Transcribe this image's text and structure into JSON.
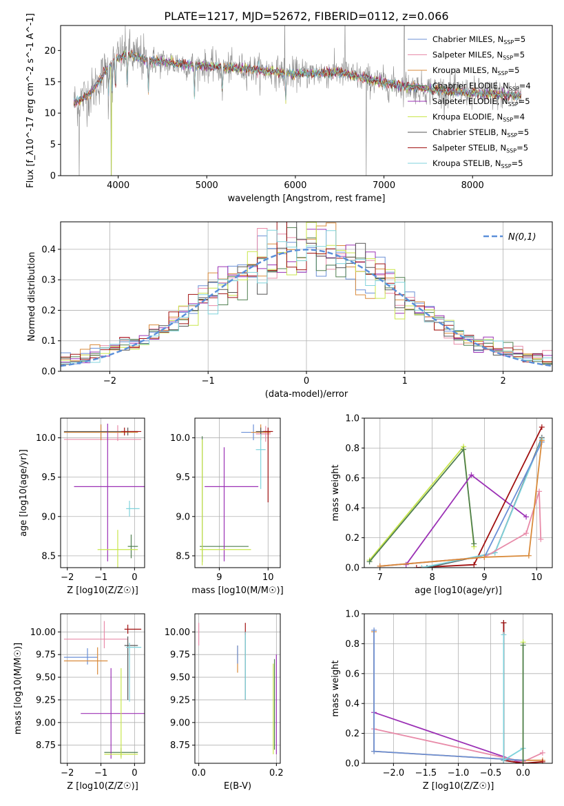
{
  "figure": {
    "title": "PLATE=1217, MJD=52672, FIBERID=0112, z=0.066"
  },
  "colors": {
    "Chabrier MILES": "#6a8fd6",
    "Salpeter MILES": "#e88aa8",
    "Kroupa MILES": "#d98a3a",
    "Chabrier ELODIE": "#4f7f4f",
    "Salpeter ELODIE": "#9b30b5",
    "Kroupa ELODIE": "#c8e64a",
    "Chabrier STELIB": "#555555",
    "Salpeter STELIB": "#a01010",
    "Kroupa STELIB": "#7fd3dc",
    "data": "#888888",
    "normal": "#5b8fd9"
  },
  "chart_data": [
    {
      "id": "spectrum",
      "type": "line",
      "title": "",
      "xlabel": "wavelength [Angstrom, rest frame]",
      "ylabel": "Flux [f_λ10^-17 erg cm^-2 s^-1 A^-1]",
      "xlim": [
        3350,
        8900
      ],
      "ylim": [
        0,
        24
      ],
      "xticks": [
        4000,
        5000,
        6000,
        7000,
        8000
      ],
      "yticks": [
        0,
        5,
        10,
        15,
        20
      ],
      "legend_loc": "upper right",
      "legend": [
        {
          "name": "Chabrier MILES",
          "nssp": "5"
        },
        {
          "name": "Salpeter MILES",
          "nssp": "5"
        },
        {
          "name": "Kroupa MILES",
          "nssp": "5"
        },
        {
          "name": "Chabrier ELODIE",
          "nssp": "4"
        },
        {
          "name": "Salpeter ELODIE",
          "nssp": "5"
        },
        {
          "name": "Kroupa ELODIE",
          "nssp": "4"
        },
        {
          "name": "Chabrier STELIB",
          "nssp": "5"
        },
        {
          "name": "Salpeter STELIB",
          "nssp": "5"
        },
        {
          "name": "Kroupa STELIB",
          "nssp": "5"
        }
      ],
      "continuum": {
        "x": [
          3500,
          3700,
          3900,
          4100,
          4300,
          4600,
          5000,
          5500,
          6000,
          6500,
          7000,
          7500,
          8000,
          8500
        ],
        "y": [
          13.5,
          14.5,
          18,
          19.5,
          18.5,
          18,
          17.5,
          17,
          16.3,
          16.5,
          14.8,
          13.8,
          13.2,
          12.8
        ]
      }
    },
    {
      "id": "residuals",
      "type": "histogram",
      "xlabel": "(data-model)/error",
      "ylabel": "Normed distribution",
      "xlim": [
        -2.5,
        2.5
      ],
      "ylim": [
        0,
        0.49
      ],
      "xticks": [
        -2,
        -1,
        0,
        1,
        2
      ],
      "yticks": [
        0.0,
        0.1,
        0.2,
        0.3,
        0.4
      ],
      "legend_loc": "upper right",
      "reference_label": "N(0,1)",
      "bins": 50
    },
    {
      "id": "age_vs_Z",
      "type": "errorbar",
      "xlabel": "Z [log10(Z/Z☉)]",
      "ylabel": "age [log10(age/yr)]",
      "xlim": [
        -2.2,
        0.3
      ],
      "ylim": [
        8.35,
        10.25
      ],
      "xticks": [
        -2,
        -1,
        0
      ],
      "yticks": [
        8.5,
        9.0,
        9.5,
        10.0
      ],
      "points": [
        {
          "s": "Chabrier MILES",
          "x": -1.0,
          "xe": [
            1.1,
            1.1
          ],
          "y": 10.07,
          "ye": [
            0.1,
            0.1
          ]
        },
        {
          "s": "Salpeter MILES",
          "x": -0.5,
          "xe": [
            1.6,
            0.7
          ],
          "y": 9.98,
          "ye": [
            0.02,
            0.18
          ]
        },
        {
          "s": "Kroupa MILES",
          "x": -1.0,
          "xe": [
            1.1,
            1.1
          ],
          "y": 10.07,
          "ye": [
            0.1,
            0.1
          ]
        },
        {
          "s": "Chabrier ELODIE",
          "x": -0.1,
          "xe": [
            0.1,
            0.2
          ],
          "y": 8.62,
          "ye": [
            0.15,
            0.15
          ]
        },
        {
          "s": "Salpeter ELODIE",
          "x": -0.8,
          "xe": [
            1.0,
            1.1
          ],
          "y": 9.38,
          "ye": [
            0.95,
            0.8
          ]
        },
        {
          "s": "Kroupa ELODIE",
          "x": -0.5,
          "xe": [
            0.6,
            0.6
          ],
          "y": 8.58,
          "ye": [
            0.25,
            0.25
          ]
        },
        {
          "s": "Chabrier STELIB",
          "x": -0.2,
          "xe": [
            1.9,
            0.3
          ],
          "y": 10.08,
          "ye": [
            0.05,
            0.05
          ]
        },
        {
          "s": "Salpeter STELIB",
          "x": -0.3,
          "xe": [
            0.1,
            0.5
          ],
          "y": 10.08,
          "ye": [
            0.05,
            0.05
          ]
        },
        {
          "s": "Kroupa STELIB",
          "x": -0.15,
          "xe": [
            0.1,
            0.3
          ],
          "y": 9.1,
          "ye": [
            0.1,
            0.1
          ]
        }
      ]
    },
    {
      "id": "age_vs_mass",
      "type": "errorbar",
      "xlabel": "mass [log10(M/M☉)]",
      "ylabel": "",
      "xlim": [
        8.5,
        10.25
      ],
      "ylim": [
        8.35,
        10.25
      ],
      "xticks": [
        9,
        10
      ],
      "yticks": [
        8.5,
        9.0,
        9.5,
        10.0
      ],
      "points": [
        {
          "s": "Chabrier MILES",
          "x": 9.7,
          "xe": [
            0.25,
            0.25
          ],
          "y": 10.07,
          "ye": [
            0.1,
            0.1
          ]
        },
        {
          "s": "Salpeter MILES",
          "x": 9.95,
          "xe": [
            0.2,
            0.1
          ],
          "y": 10.05,
          "ye": [
            0.1,
            0.1
          ]
        },
        {
          "s": "Kroupa MILES",
          "x": 9.85,
          "xe": [
            0.2,
            0.2
          ],
          "y": 10.07,
          "ye": [
            0.1,
            0.1
          ]
        },
        {
          "s": "Chabrier ELODIE",
          "x": 8.65,
          "xe": [
            0.05,
            0.95
          ],
          "y": 8.62,
          "ye": [
            0.2,
            1.4
          ]
        },
        {
          "s": "Salpeter ELODIE",
          "x": 9.1,
          "xe": [
            0.4,
            0.7
          ],
          "y": 9.38,
          "ye": [
            0.95,
            0.5
          ]
        },
        {
          "s": "Kroupa ELODIE",
          "x": 8.65,
          "xe": [
            0.05,
            1.0
          ],
          "y": 8.58,
          "ye": [
            0.2,
            1.4
          ]
        },
        {
          "s": "Chabrier STELIB",
          "x": 9.85,
          "xe": [
            0.1,
            0.2
          ],
          "y": 10.08,
          "ye": [
            0.05,
            0.05
          ]
        },
        {
          "s": "Salpeter STELIB",
          "x": 10.0,
          "xe": [
            0.1,
            0.1
          ],
          "y": 10.08,
          "ye": [
            0.9,
            0.05
          ]
        },
        {
          "s": "Kroupa STELIB",
          "x": 9.85,
          "xe": [
            0.1,
            0.1
          ],
          "y": 9.85,
          "ye": [
            0.5,
            0.2
          ]
        }
      ]
    },
    {
      "id": "weight_vs_age",
      "type": "line",
      "xlabel": "age [log10(age/yr)]",
      "ylabel": "mass weight",
      "xlim": [
        6.7,
        10.3
      ],
      "ylim": [
        0,
        1.0
      ],
      "xticks": [
        7,
        8,
        9,
        10
      ],
      "yticks": [
        0.0,
        0.2,
        0.4,
        0.6,
        0.8,
        1.0
      ],
      "series": [
        {
          "s": "Kroupa ELODIE",
          "x": [
            6.8,
            8.6,
            8.8
          ],
          "y": [
            0.05,
            0.81,
            0.14
          ]
        },
        {
          "s": "Chabrier ELODIE",
          "x": [
            6.8,
            8.6,
            8.8
          ],
          "y": [
            0.04,
            0.79,
            0.16
          ]
        },
        {
          "s": "Salpeter ELODIE",
          "x": [
            7.5,
            8.75,
            9.8
          ],
          "y": [
            0.02,
            0.62,
            0.34
          ]
        },
        {
          "s": "Salpeter STELIB",
          "x": [
            7.7,
            8.8,
            10.1
          ],
          "y": [
            0.0,
            0.02,
            0.94
          ]
        },
        {
          "s": "Chabrier STELIB",
          "x": [
            7.9,
            9.2,
            10.1
          ],
          "y": [
            0.0,
            0.1,
            0.87
          ]
        },
        {
          "s": "Kroupa STELIB",
          "x": [
            7.8,
            9.2,
            10.1
          ],
          "y": [
            0.0,
            0.1,
            0.86
          ]
        },
        {
          "s": "Chabrier MILES",
          "x": [
            7.0,
            9.0,
            10.1
          ],
          "y": [
            0.01,
            0.07,
            0.84
          ]
        },
        {
          "s": "Salpeter MILES",
          "x": [
            7.0,
            9.0,
            9.8,
            10.05,
            10.08
          ],
          "y": [
            0.01,
            0.07,
            0.23,
            0.51,
            0.19
          ]
        },
        {
          "s": "Kroupa MILES",
          "x": [
            7.0,
            9.0,
            9.85,
            10.1
          ],
          "y": [
            0.01,
            0.07,
            0.08,
            0.85
          ]
        }
      ]
    },
    {
      "id": "mass_vs_Z",
      "type": "errorbar",
      "xlabel": "Z [log10(Z/Z☉)]",
      "ylabel": "mass [log10(M/M☉)]",
      "xlim": [
        -2.2,
        0.3
      ],
      "ylim": [
        8.55,
        10.2
      ],
      "xticks": [
        -2,
        -1,
        0
      ],
      "yticks": [
        8.75,
        9.0,
        9.25,
        9.5,
        9.75,
        10.0
      ],
      "points": [
        {
          "s": "Chabrier MILES",
          "x": -1.4,
          "xe": [
            0.7,
            0.3
          ],
          "y": 9.72,
          "ye": [
            0.08,
            0.1
          ]
        },
        {
          "s": "Salpeter MILES",
          "x": -0.9,
          "xe": [
            1.2,
            0.7
          ],
          "y": 9.92,
          "ye": [
            0.1,
            0.2
          ]
        },
        {
          "s": "Kroupa MILES",
          "x": -1.1,
          "xe": [
            1.0,
            0.3
          ],
          "y": 9.68,
          "ye": [
            0.15,
            0.15
          ]
        },
        {
          "s": "Chabrier ELODIE",
          "x": -0.4,
          "xe": [
            0.5,
            0.5
          ],
          "y": 8.67,
          "ye": [
            0.05,
            0.05
          ]
        },
        {
          "s": "Salpeter ELODIE",
          "x": -0.7,
          "xe": [
            0.9,
            1.0
          ],
          "y": 9.1,
          "ye": [
            0.5,
            0.5
          ]
        },
        {
          "s": "Kroupa ELODIE",
          "x": -0.4,
          "xe": [
            0.5,
            0.5
          ],
          "y": 8.65,
          "ye": [
            0.05,
            0.95
          ]
        },
        {
          "s": "Chabrier STELIB",
          "x": -0.2,
          "xe": [
            0.1,
            0.3
          ],
          "y": 9.85,
          "ye": [
            0.6,
            0.1
          ]
        },
        {
          "s": "Salpeter STELIB",
          "x": -0.2,
          "xe": [
            0.1,
            0.4
          ],
          "y": 10.03,
          "ye": [
            0.05,
            0.05
          ]
        },
        {
          "s": "Kroupa STELIB",
          "x": -0.15,
          "xe": [
            0.1,
            0.35
          ],
          "y": 9.83,
          "ye": [
            0.6,
            0.05
          ]
        }
      ]
    },
    {
      "id": "mass_vs_ebv",
      "type": "errorbar",
      "xlabel": "E(B-V)",
      "ylabel": "",
      "xlim": [
        -0.01,
        0.21
      ],
      "ylim": [
        8.55,
        10.2
      ],
      "xticks": [
        0.0,
        0.2
      ],
      "yticks": [
        8.75,
        9.0,
        9.25,
        9.5,
        9.75,
        10.0
      ],
      "points": [
        {
          "s": "Salpeter MILES",
          "x": 0.0,
          "xe": [
            0,
            0
          ],
          "y": 9.95,
          "ye": [
            0.1,
            0.15
          ]
        },
        {
          "s": "Kroupa MILES",
          "x": 0.1,
          "xe": [
            0,
            0
          ],
          "y": 9.7,
          "ye": [
            0.15,
            0.15
          ]
        },
        {
          "s": "Chabrier MILES",
          "x": 0.1,
          "xe": [
            0,
            0
          ],
          "y": 9.75,
          "ye": [
            0.1,
            0.1
          ]
        },
        {
          "s": "Chabrier STELIB",
          "x": 0.12,
          "xe": [
            0,
            0
          ],
          "y": 9.7,
          "ye": [
            0.45,
            0.3
          ]
        },
        {
          "s": "Salpeter STELIB",
          "x": 0.12,
          "xe": [
            0,
            0
          ],
          "y": 10.02,
          "ye": [
            0.05,
            0.08
          ]
        },
        {
          "s": "Kroupa STELIB",
          "x": 0.12,
          "xe": [
            0,
            0
          ],
          "y": 9.8,
          "ye": [
            0.55,
            0.2
          ]
        },
        {
          "s": "Chabrier ELODIE",
          "x": 0.195,
          "xe": [
            0,
            0
          ],
          "y": 9.2,
          "ye": [
            0.5,
            0.5
          ]
        },
        {
          "s": "Salpeter ELODIE",
          "x": 0.2,
          "xe": [
            0,
            0
          ],
          "y": 9.2,
          "ye": [
            0.55,
            0.55
          ]
        },
        {
          "s": "Kroupa ELODIE",
          "x": 0.192,
          "xe": [
            0,
            0
          ],
          "y": 9.15,
          "ye": [
            0.5,
            0.5
          ]
        }
      ]
    },
    {
      "id": "weight_vs_Z",
      "type": "line",
      "xlabel": "Z [log10(Z/Z☉)]",
      "ylabel": "mass weight",
      "xlim": [
        -2.45,
        0.45
      ],
      "ylim": [
        0,
        1.0
      ],
      "xticks": [
        -2.0,
        -1.5,
        -1.0,
        -0.5,
        0.0
      ],
      "yticks": [
        0.0,
        0.2,
        0.4,
        0.6,
        0.8,
        1.0
      ],
      "series": [
        {
          "s": "Salpeter ELODIE",
          "x": [
            -2.3,
            0.0
          ],
          "y": [
            0.34,
            0.0
          ]
        },
        {
          "s": "Salpeter MILES",
          "x": [
            -2.3,
            0.0,
            0.3
          ],
          "y": [
            0.23,
            0.01,
            0.07
          ]
        },
        {
          "s": "Kroupa MILES",
          "x": [
            -2.3,
            -2.3,
            0.0,
            0.3
          ],
          "y": [
            0.88,
            0.08,
            0.02,
            0.02
          ]
        },
        {
          "s": "Chabrier MILES",
          "x": [
            -2.3,
            -2.3,
            0.0
          ],
          "y": [
            0.89,
            0.08,
            0.02
          ]
        },
        {
          "s": "Chabrier STELIB",
          "x": [
            -0.3,
            -0.3,
            0.0
          ],
          "y": [
            0.94,
            0.02,
            0.0
          ]
        },
        {
          "s": "Salpeter STELIB",
          "x": [
            -0.3,
            -0.3,
            0.0,
            0.3
          ],
          "y": [
            0.94,
            0.02,
            0.0,
            0.01
          ]
        },
        {
          "s": "Kroupa STELIB",
          "x": [
            -0.3,
            -0.3,
            0.0
          ],
          "y": [
            0.86,
            0.02,
            0.1
          ]
        },
        {
          "s": "Kroupa ELODIE",
          "x": [
            0.0,
            0.0
          ],
          "y": [
            0.81,
            0.0
          ]
        },
        {
          "s": "Chabrier ELODIE",
          "x": [
            0.0,
            0.0
          ],
          "y": [
            0.79,
            0.0
          ]
        }
      ]
    }
  ]
}
